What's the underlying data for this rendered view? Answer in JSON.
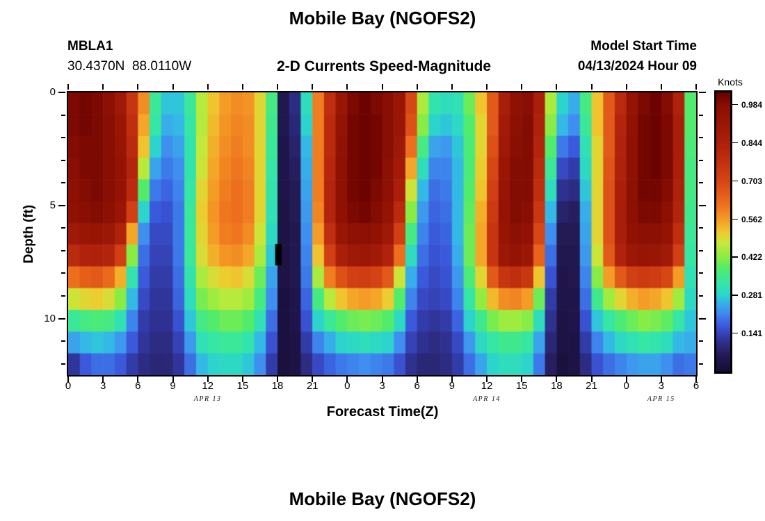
{
  "header": {
    "title": "Mobile Bay (NGOFS2)",
    "station_id": "MBLA1",
    "station_coords": "30.4370N  88.0110W",
    "plot_subtitle": "2-D Currents Speed-Magnitude",
    "model_start_label": "Model Start Time",
    "model_start_value": "04/13/2024 Hour 09"
  },
  "footer": {
    "next_panel_title": "Mobile Bay (NGOFS2)"
  },
  "chart_data": {
    "type": "heatmap",
    "title": "2-D Currents Speed-Magnitude",
    "xlabel": "Forecast Time(Z)",
    "ylabel": "Depth (ft)",
    "x_axis": {
      "hours_range": [
        0,
        54
      ],
      "tick_hours": [
        0,
        3,
        6,
        9,
        12,
        15,
        18,
        21,
        24,
        27,
        30,
        33,
        36,
        39,
        42,
        45,
        48,
        51,
        54
      ],
      "tick_labels": [
        "0",
        "3",
        "6",
        "9",
        "12",
        "15",
        "18",
        "21",
        "0",
        "3",
        "6",
        "9",
        "12",
        "15",
        "18",
        "21",
        "0",
        "3",
        "6"
      ],
      "date_labels": [
        {
          "label": "APR 13",
          "hour": 12
        },
        {
          "label": "APR 14",
          "hour": 36
        },
        {
          "label": "APR 15",
          "hour": 51
        }
      ]
    },
    "y_axis": {
      "depth_range_ft": [
        0,
        12.5
      ],
      "major_ticks": [
        0,
        5,
        10
      ],
      "major_tick_labels": [
        "0",
        "5",
        "10"
      ],
      "minor_ticks": [
        1,
        2,
        3,
        4,
        6,
        7,
        8,
        9,
        11,
        12
      ]
    },
    "colorbar": {
      "label": "Knots",
      "domain": [
        0,
        1.03
      ],
      "ticks": [
        0.984,
        0.844,
        0.703,
        0.562,
        0.422,
        0.281,
        0.141
      ],
      "tick_labels": [
        "0.984",
        "0.844",
        "0.703",
        "0.562",
        "0.422",
        "0.281",
        "0.141"
      ]
    },
    "colormap_stops": [
      [
        0.0,
        "#160d35"
      ],
      [
        0.06,
        "#241a55"
      ],
      [
        0.12,
        "#31379f"
      ],
      [
        0.16,
        "#3a55d9"
      ],
      [
        0.21,
        "#3f8bf0"
      ],
      [
        0.25,
        "#35b5e8"
      ],
      [
        0.273,
        "#2cd6cb"
      ],
      [
        0.32,
        "#35e6a4"
      ],
      [
        0.37,
        "#52ec6a"
      ],
      [
        0.41,
        "#8aed43"
      ],
      [
        0.46,
        "#c6e93a"
      ],
      [
        0.5,
        "#f0c92f"
      ],
      [
        0.545,
        "#f49b26"
      ],
      [
        0.6,
        "#ee6f1d"
      ],
      [
        0.683,
        "#d64415"
      ],
      [
        0.8,
        "#b2230c"
      ],
      [
        0.9,
        "#971505"
      ],
      [
        0.955,
        "#880e03"
      ],
      [
        1.0,
        "#650000"
      ]
    ],
    "grid": {
      "n_time_columns": 54,
      "n_depth_rows": 13,
      "units": "knots"
    },
    "values": [
      [
        1.0,
        1.01,
        1.0,
        0.97,
        0.9,
        0.76,
        0.58,
        0.34,
        0.27,
        0.27,
        0.34,
        0.46,
        0.52,
        0.56,
        0.58,
        0.57,
        0.5,
        0.36,
        0.05,
        0.1,
        0.3,
        0.6,
        0.78,
        0.92,
        1.0,
        1.02,
        1.0,
        0.98,
        0.92,
        0.7,
        0.45,
        0.32,
        0.3,
        0.31,
        0.4,
        0.52,
        0.66,
        0.86,
        0.96,
        0.98,
        0.85,
        0.45,
        0.28,
        0.25,
        0.36,
        0.52,
        0.66,
        0.8,
        0.94,
        1.0,
        1.02,
        0.99,
        0.84,
        0.38
      ],
      [
        1.0,
        1.01,
        1.0,
        0.98,
        0.92,
        0.78,
        0.55,
        0.33,
        0.25,
        0.26,
        0.33,
        0.46,
        0.53,
        0.57,
        0.59,
        0.58,
        0.5,
        0.35,
        0.05,
        0.09,
        0.28,
        0.6,
        0.8,
        0.94,
        1.01,
        1.02,
        1.01,
        0.98,
        0.92,
        0.68,
        0.42,
        0.28,
        0.27,
        0.29,
        0.38,
        0.5,
        0.66,
        0.88,
        0.97,
        0.99,
        0.84,
        0.42,
        0.26,
        0.22,
        0.34,
        0.52,
        0.66,
        0.82,
        0.95,
        1.01,
        1.02,
        1.0,
        0.86,
        0.38
      ],
      [
        0.99,
        1.0,
        1.0,
        0.98,
        0.93,
        0.8,
        0.52,
        0.28,
        0.22,
        0.24,
        0.32,
        0.47,
        0.54,
        0.58,
        0.6,
        0.58,
        0.5,
        0.34,
        0.04,
        0.08,
        0.26,
        0.6,
        0.8,
        0.95,
        1.01,
        1.02,
        1.01,
        0.98,
        0.9,
        0.62,
        0.36,
        0.24,
        0.23,
        0.27,
        0.37,
        0.5,
        0.68,
        0.9,
        0.98,
        0.99,
        0.82,
        0.38,
        0.2,
        0.17,
        0.31,
        0.5,
        0.66,
        0.83,
        0.96,
        1.01,
        1.02,
        1.0,
        0.86,
        0.37
      ],
      [
        0.98,
        1.0,
        1.0,
        0.98,
        0.94,
        0.82,
        0.46,
        0.24,
        0.2,
        0.22,
        0.32,
        0.48,
        0.55,
        0.59,
        0.61,
        0.59,
        0.5,
        0.33,
        0.04,
        0.07,
        0.25,
        0.6,
        0.81,
        0.96,
        1.01,
        1.02,
        1.01,
        0.97,
        0.88,
        0.55,
        0.3,
        0.21,
        0.21,
        0.26,
        0.37,
        0.51,
        0.7,
        0.92,
        0.99,
        0.99,
        0.8,
        0.34,
        0.15,
        0.13,
        0.29,
        0.5,
        0.67,
        0.84,
        0.96,
        1.01,
        1.02,
        1.0,
        0.85,
        0.36
      ],
      [
        0.97,
        0.99,
        1.0,
        0.98,
        0.94,
        0.8,
        0.38,
        0.2,
        0.18,
        0.21,
        0.33,
        0.5,
        0.56,
        0.6,
        0.62,
        0.6,
        0.5,
        0.32,
        0.04,
        0.06,
        0.24,
        0.6,
        0.82,
        0.96,
        1.01,
        1.02,
        1.0,
        0.96,
        0.85,
        0.48,
        0.26,
        0.19,
        0.2,
        0.26,
        0.38,
        0.52,
        0.72,
        0.93,
        0.99,
        0.99,
        0.78,
        0.3,
        0.11,
        0.1,
        0.27,
        0.5,
        0.68,
        0.85,
        0.97,
        1.01,
        1.01,
        0.99,
        0.84,
        0.36
      ],
      [
        0.96,
        0.98,
        0.99,
        0.97,
        0.92,
        0.72,
        0.28,
        0.17,
        0.16,
        0.2,
        0.34,
        0.51,
        0.57,
        0.61,
        0.62,
        0.6,
        0.5,
        0.31,
        0.03,
        0.06,
        0.23,
        0.59,
        0.82,
        0.96,
        1.0,
        1.01,
        0.99,
        0.94,
        0.8,
        0.42,
        0.23,
        0.18,
        0.19,
        0.26,
        0.39,
        0.54,
        0.74,
        0.94,
        0.99,
        0.98,
        0.75,
        0.26,
        0.08,
        0.07,
        0.25,
        0.5,
        0.68,
        0.86,
        0.97,
        1.0,
        1.0,
        0.97,
        0.82,
        0.35
      ],
      [
        0.9,
        0.92,
        0.93,
        0.91,
        0.84,
        0.55,
        0.22,
        0.15,
        0.15,
        0.2,
        0.34,
        0.5,
        0.56,
        0.6,
        0.61,
        0.58,
        0.48,
        0.29,
        0.03,
        0.05,
        0.22,
        0.56,
        0.78,
        0.92,
        0.96,
        0.97,
        0.95,
        0.9,
        0.72,
        0.36,
        0.21,
        0.17,
        0.18,
        0.26,
        0.4,
        0.55,
        0.76,
        0.93,
        0.97,
        0.95,
        0.7,
        0.22,
        0.06,
        0.06,
        0.24,
        0.5,
        0.68,
        0.86,
        0.95,
        0.97,
        0.97,
        0.94,
        0.78,
        0.34
      ],
      [
        0.8,
        0.83,
        0.84,
        0.82,
        0.72,
        0.42,
        0.19,
        0.14,
        0.14,
        0.2,
        0.34,
        0.49,
        0.54,
        0.57,
        0.58,
        0.55,
        0.45,
        0.27,
        0.03,
        0.05,
        0.21,
        0.52,
        0.72,
        0.85,
        0.9,
        0.91,
        0.89,
        0.83,
        0.62,
        0.3,
        0.19,
        0.16,
        0.17,
        0.25,
        0.4,
        0.55,
        0.76,
        0.91,
        0.94,
        0.91,
        0.64,
        0.19,
        0.05,
        0.05,
        0.23,
        0.48,
        0.66,
        0.83,
        0.91,
        0.93,
        0.92,
        0.89,
        0.72,
        0.33
      ],
      [
        0.62,
        0.65,
        0.66,
        0.63,
        0.54,
        0.32,
        0.17,
        0.13,
        0.13,
        0.19,
        0.32,
        0.45,
        0.49,
        0.51,
        0.52,
        0.49,
        0.4,
        0.24,
        0.03,
        0.05,
        0.2,
        0.45,
        0.6,
        0.68,
        0.72,
        0.73,
        0.71,
        0.66,
        0.48,
        0.25,
        0.17,
        0.15,
        0.16,
        0.23,
        0.37,
        0.5,
        0.66,
        0.76,
        0.78,
        0.75,
        0.52,
        0.16,
        0.04,
        0.05,
        0.21,
        0.42,
        0.56,
        0.66,
        0.72,
        0.74,
        0.73,
        0.7,
        0.56,
        0.31
      ],
      [
        0.48,
        0.5,
        0.51,
        0.49,
        0.42,
        0.26,
        0.15,
        0.12,
        0.12,
        0.18,
        0.3,
        0.41,
        0.44,
        0.46,
        0.46,
        0.44,
        0.36,
        0.22,
        0.02,
        0.04,
        0.18,
        0.36,
        0.46,
        0.52,
        0.55,
        0.56,
        0.55,
        0.51,
        0.38,
        0.21,
        0.15,
        0.14,
        0.15,
        0.21,
        0.33,
        0.43,
        0.53,
        0.58,
        0.59,
        0.56,
        0.4,
        0.13,
        0.04,
        0.04,
        0.19,
        0.35,
        0.44,
        0.5,
        0.54,
        0.56,
        0.55,
        0.52,
        0.44,
        0.29
      ],
      [
        0.34,
        0.36,
        0.37,
        0.36,
        0.31,
        0.21,
        0.13,
        0.11,
        0.11,
        0.16,
        0.27,
        0.36,
        0.38,
        0.4,
        0.4,
        0.38,
        0.31,
        0.19,
        0.02,
        0.04,
        0.16,
        0.28,
        0.34,
        0.38,
        0.4,
        0.41,
        0.4,
        0.38,
        0.29,
        0.17,
        0.13,
        0.12,
        0.13,
        0.18,
        0.28,
        0.35,
        0.41,
        0.44,
        0.44,
        0.42,
        0.3,
        0.11,
        0.03,
        0.04,
        0.16,
        0.27,
        0.33,
        0.37,
        0.4,
        0.42,
        0.41,
        0.39,
        0.33,
        0.27
      ],
      [
        0.24,
        0.26,
        0.27,
        0.26,
        0.23,
        0.17,
        0.12,
        0.1,
        0.1,
        0.14,
        0.23,
        0.31,
        0.33,
        0.34,
        0.34,
        0.32,
        0.26,
        0.16,
        0.02,
        0.03,
        0.13,
        0.21,
        0.25,
        0.28,
        0.29,
        0.3,
        0.29,
        0.28,
        0.22,
        0.14,
        0.11,
        0.1,
        0.11,
        0.15,
        0.23,
        0.29,
        0.33,
        0.35,
        0.35,
        0.33,
        0.24,
        0.09,
        0.03,
        0.03,
        0.13,
        0.21,
        0.26,
        0.29,
        0.31,
        0.33,
        0.32,
        0.3,
        0.26,
        0.25
      ],
      [
        0.12,
        0.17,
        0.19,
        0.19,
        0.17,
        0.13,
        0.1,
        0.09,
        0.09,
        0.12,
        0.19,
        0.26,
        0.28,
        0.29,
        0.29,
        0.27,
        0.22,
        0.13,
        0.02,
        0.03,
        0.1,
        0.15,
        0.18,
        0.2,
        0.21,
        0.22,
        0.21,
        0.2,
        0.16,
        0.11,
        0.09,
        0.09,
        0.1,
        0.13,
        0.19,
        0.24,
        0.28,
        0.3,
        0.3,
        0.28,
        0.2,
        0.07,
        0.02,
        0.03,
        0.1,
        0.16,
        0.19,
        0.21,
        0.23,
        0.24,
        0.24,
        0.22,
        0.19,
        0.2
      ]
    ],
    "black_marker": {
      "hour_start": 17.8,
      "hour_end": 18.35,
      "depth_start_ft": 6.7,
      "depth_end_ft": 7.65,
      "color": "#000000"
    }
  }
}
